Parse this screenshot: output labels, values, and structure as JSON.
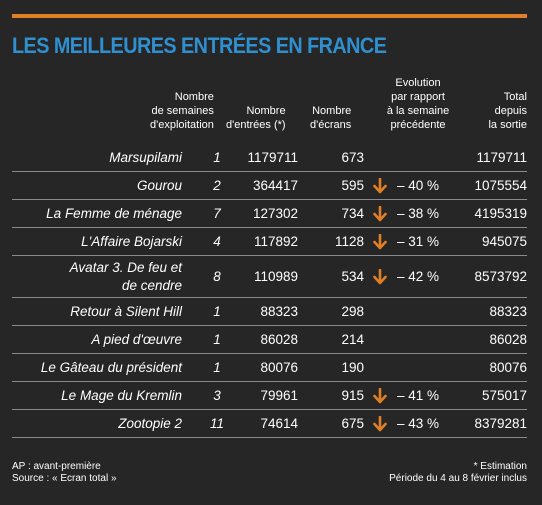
{
  "colors": {
    "accent": "#e07f26",
    "title": "#2f8fcf",
    "background": "#262626"
  },
  "title": "LES MEILLEURES ENTRÉES EN FRANCE",
  "headers": {
    "weeks": "Nombre\nde semaines\nd'exploitation",
    "entries": "Nombre\nd'entrées (*)",
    "screens": "Nombre\nd'écrans",
    "evolution": "Evolution\npar rapport\nà la semaine\nprécédente",
    "total": "Total\ndepuis\nla sortie"
  },
  "rows": [
    {
      "title": "Marsupilami",
      "weeks": "1",
      "entries": "1179711",
      "screens": "673",
      "evolution": "",
      "total": "1179711"
    },
    {
      "title": "Gourou",
      "weeks": "2",
      "entries": "364417",
      "screens": "595",
      "evolution": "– 40 %",
      "total": "1075554"
    },
    {
      "title": "La Femme de ménage",
      "weeks": "7",
      "entries": "127302",
      "screens": "734",
      "evolution": "– 38 %",
      "total": "4195319"
    },
    {
      "title": "L'Affaire Bojarski",
      "weeks": "4",
      "entries": "117892",
      "screens": "1128",
      "evolution": "– 31 %",
      "total": "945075"
    },
    {
      "title": "Avatar 3. De feu et\nde cendre",
      "weeks": "8",
      "entries": "110989",
      "screens": "534",
      "evolution": "– 42 %",
      "total": "8573792"
    },
    {
      "title": "Retour à Silent Hill",
      "weeks": "1",
      "entries": "88323",
      "screens": "298",
      "evolution": "",
      "total": "88323"
    },
    {
      "title": "A pied d'œuvre",
      "weeks": "1",
      "entries": "86028",
      "screens": "214",
      "evolution": "",
      "total": "86028"
    },
    {
      "title": "Le Gâteau du président",
      "weeks": "1",
      "entries": "80076",
      "screens": "190",
      "evolution": "",
      "total": "80076"
    },
    {
      "title": "Le Mage du Kremlin",
      "weeks": "3",
      "entries": "79961",
      "screens": "915",
      "evolution": "– 41 %",
      "total": "575017"
    },
    {
      "title": "Zootopie 2",
      "weeks": "11",
      "entries": "74614",
      "screens": "675",
      "evolution": "– 43 %",
      "total": "8379281"
    }
  ],
  "footer": {
    "ap": "AP : avant-première",
    "source": "Source : « Ecran total »",
    "estimation": "* Estimation",
    "period": "Période du 4 au 8 février inclus"
  }
}
